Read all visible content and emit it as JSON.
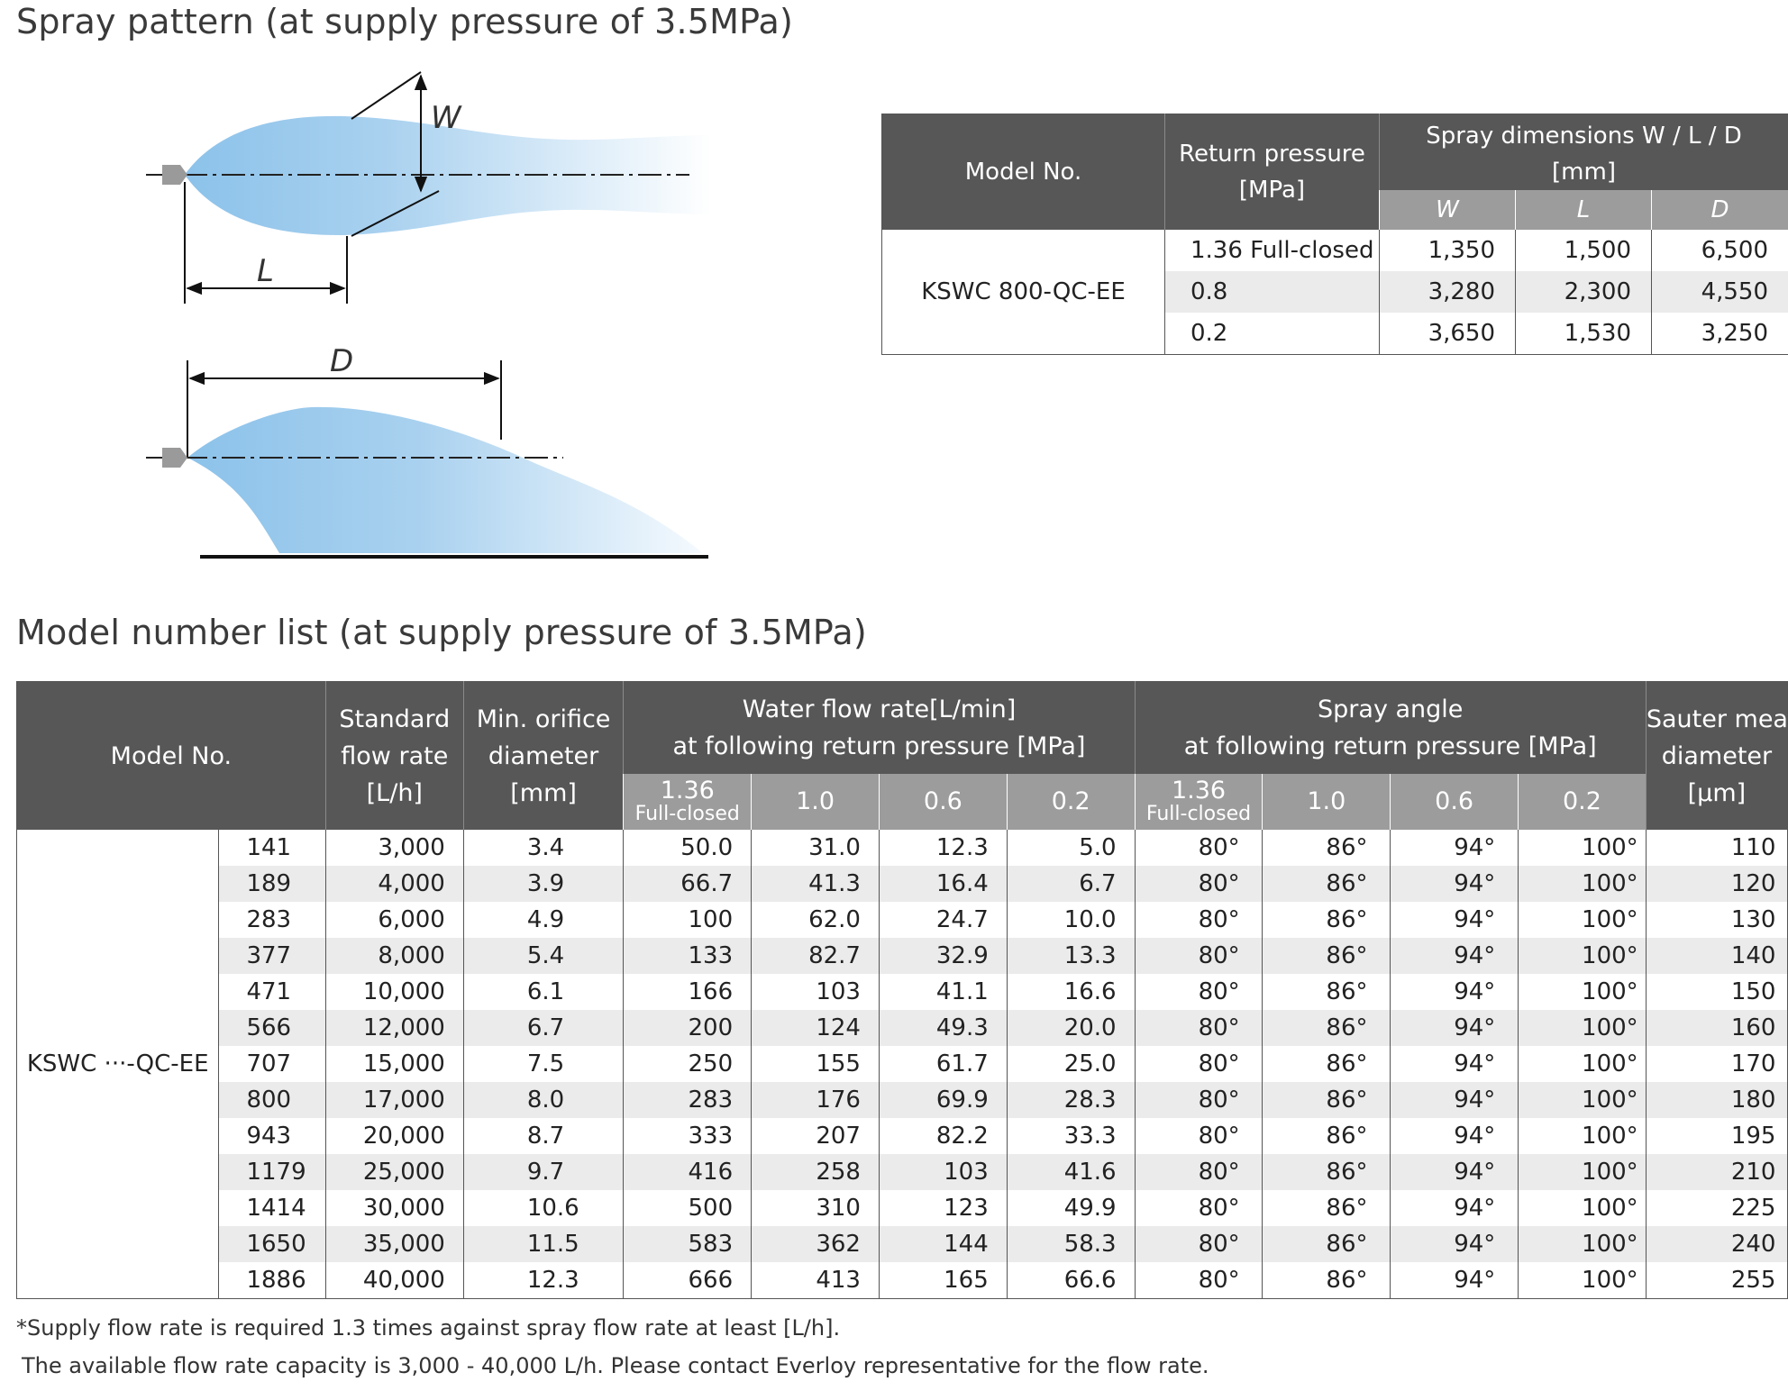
{
  "section1_title": "Spray pattern (at supply pressure of 3.5MPa)",
  "section2_title": "Model number list (at supply pressure of 3.5MPa)",
  "diagram": {
    "label_w": "W",
    "label_l": "L",
    "label_d": "D",
    "spray_color": "#a9d1ef",
    "nozzle_color": "#9a9a9a"
  },
  "dimensions_table": {
    "header_model": "Model No.",
    "header_return_pressure": [
      "Return pressure",
      "[MPa]"
    ],
    "header_spray_dims": [
      "Spray dimensions W / L / D",
      "[mm]"
    ],
    "sub_headers": [
      "W",
      "L",
      "D"
    ],
    "model": "KSWC 800-QC-EE",
    "rows": [
      {
        "pressure": "1.36 Full-closed",
        "w": "1,350",
        "l": "1,500",
        "d": "6,500"
      },
      {
        "pressure": "0.8",
        "w": "3,280",
        "l": "2,300",
        "d": "4,550"
      },
      {
        "pressure": "0.2",
        "w": "3,650",
        "l": "1,530",
        "d": "3,250"
      }
    ]
  },
  "model_table": {
    "header_model": "Model No.",
    "header_std_flow": [
      "Standard",
      "flow rate",
      "[L/h]"
    ],
    "header_orifice": [
      "Min. orifice",
      "diameter",
      "[mm]"
    ],
    "header_water_flow": [
      "Water flow rate[L/min]",
      "at following return pressure [MPa]"
    ],
    "header_spray_angle": [
      "Spray angle",
      "at following return pressure [MPa]"
    ],
    "header_sauter": [
      "Sauter mean",
      "diameter",
      "[μm]"
    ],
    "pressure_cols": [
      {
        "top": "1.36",
        "sub": "Full-closed"
      },
      {
        "top": "1.0",
        "sub": ""
      },
      {
        "top": "0.6",
        "sub": ""
      },
      {
        "top": "0.2",
        "sub": ""
      }
    ],
    "model_prefix": "KSWC ···-QC-EE",
    "rows": [
      {
        "code": "141",
        "std": "3,000",
        "orifice": "3.4",
        "f1": "50.0",
        "f2": "31.0",
        "f3": "12.3",
        "f4": "5.0",
        "a1": "80°",
        "a2": "86°",
        "a3": "94°",
        "a4": "100°",
        "smd": "110"
      },
      {
        "code": "189",
        "std": "4,000",
        "orifice": "3.9",
        "f1": "66.7",
        "f2": "41.3",
        "f3": "16.4",
        "f4": "6.7",
        "a1": "80°",
        "a2": "86°",
        "a3": "94°",
        "a4": "100°",
        "smd": "120"
      },
      {
        "code": "283",
        "std": "6,000",
        "orifice": "4.9",
        "f1": "100",
        "f2": "62.0",
        "f3": "24.7",
        "f4": "10.0",
        "a1": "80°",
        "a2": "86°",
        "a3": "94°",
        "a4": "100°",
        "smd": "130"
      },
      {
        "code": "377",
        "std": "8,000",
        "orifice": "5.4",
        "f1": "133",
        "f2": "82.7",
        "f3": "32.9",
        "f4": "13.3",
        "a1": "80°",
        "a2": "86°",
        "a3": "94°",
        "a4": "100°",
        "smd": "140"
      },
      {
        "code": "471",
        "std": "10,000",
        "orifice": "6.1",
        "f1": "166",
        "f2": "103",
        "f3": "41.1",
        "f4": "16.6",
        "a1": "80°",
        "a2": "86°",
        "a3": "94°",
        "a4": "100°",
        "smd": "150"
      },
      {
        "code": "566",
        "std": "12,000",
        "orifice": "6.7",
        "f1": "200",
        "f2": "124",
        "f3": "49.3",
        "f4": "20.0",
        "a1": "80°",
        "a2": "86°",
        "a3": "94°",
        "a4": "100°",
        "smd": "160"
      },
      {
        "code": "707",
        "std": "15,000",
        "orifice": "7.5",
        "f1": "250",
        "f2": "155",
        "f3": "61.7",
        "f4": "25.0",
        "a1": "80°",
        "a2": "86°",
        "a3": "94°",
        "a4": "100°",
        "smd": "170"
      },
      {
        "code": "800",
        "std": "17,000",
        "orifice": "8.0",
        "f1": "283",
        "f2": "176",
        "f3": "69.9",
        "f4": "28.3",
        "a1": "80°",
        "a2": "86°",
        "a3": "94°",
        "a4": "100°",
        "smd": "180"
      },
      {
        "code": "943",
        "std": "20,000",
        "orifice": "8.7",
        "f1": "333",
        "f2": "207",
        "f3": "82.2",
        "f4": "33.3",
        "a1": "80°",
        "a2": "86°",
        "a3": "94°",
        "a4": "100°",
        "smd": "195"
      },
      {
        "code": "1179",
        "std": "25,000",
        "orifice": "9.7",
        "f1": "416",
        "f2": "258",
        "f3": "103",
        "f4": "41.6",
        "a1": "80°",
        "a2": "86°",
        "a3": "94°",
        "a4": "100°",
        "smd": "210"
      },
      {
        "code": "1414",
        "std": "30,000",
        "orifice": "10.6",
        "f1": "500",
        "f2": "310",
        "f3": "123",
        "f4": "49.9",
        "a1": "80°",
        "a2": "86°",
        "a3": "94°",
        "a4": "100°",
        "smd": "225"
      },
      {
        "code": "1650",
        "std": "35,000",
        "orifice": "11.5",
        "f1": "583",
        "f2": "362",
        "f3": "144",
        "f4": "58.3",
        "a1": "80°",
        "a2": "86°",
        "a3": "94°",
        "a4": "100°",
        "smd": "240"
      },
      {
        "code": "1886",
        "std": "40,000",
        "orifice": "12.3",
        "f1": "666",
        "f2": "413",
        "f3": "165",
        "f4": "66.6",
        "a1": "80°",
        "a2": "86°",
        "a3": "94°",
        "a4": "100°",
        "smd": "255"
      }
    ]
  },
  "notes": [
    "*Supply flow rate is required 1.3 times against spray flow rate at least [L/h].",
    "The available flow rate capacity is 3,000 - 40,000 L/h. Please contact Everloy representative for the flow rate."
  ]
}
